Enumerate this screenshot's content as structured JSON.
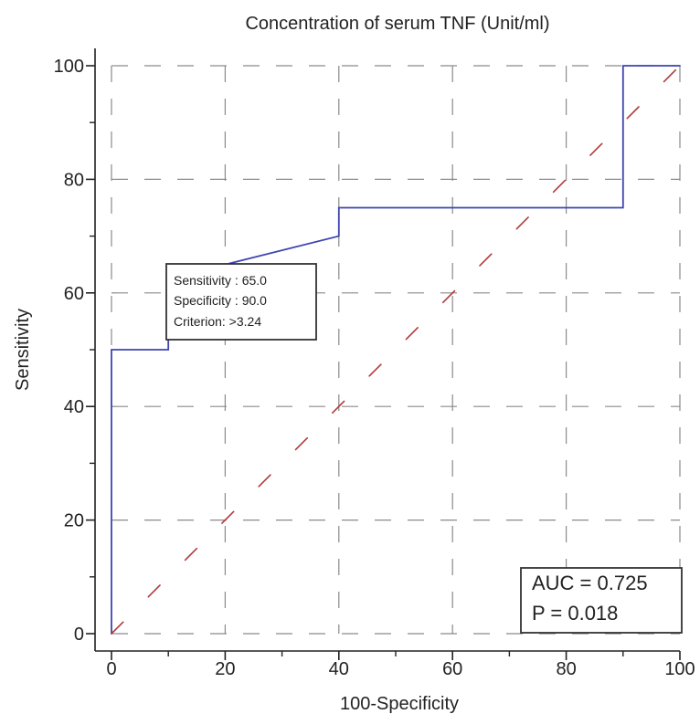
{
  "chart_data": {
    "type": "line",
    "title": "Concentration of serum TNF (Unit/ml)",
    "xlabel": "100-Specificity",
    "ylabel": "Sensitivity",
    "xlim": [
      0,
      100
    ],
    "ylim": [
      0,
      100
    ],
    "x_ticks": [
      "0",
      "20",
      "40",
      "60",
      "80",
      "100"
    ],
    "y_ticks": [
      "0",
      "20",
      "40",
      "60",
      "80",
      "100"
    ],
    "grid": true,
    "series": [
      {
        "style": "solid",
        "color": "#3f45b0",
        "x": [
          0,
          0,
          10,
          10,
          20,
          40,
          40,
          90,
          90,
          100
        ],
        "y": [
          0,
          50,
          50,
          65,
          65,
          70,
          75,
          75,
          100,
          100
        ]
      },
      {
        "style": "dashed",
        "color": "#b0393b",
        "x": [
          0,
          100
        ],
        "y": [
          0,
          100
        ]
      }
    ],
    "callout": {
      "lines": [
        "Sensitivity : 65.0",
        "Specificity : 90.0",
        "Criterion: >3.24"
      ],
      "point": [
        10,
        65
      ]
    },
    "stats_box": {
      "lines": [
        "AUC = 0.725",
        "P = 0.018"
      ]
    }
  }
}
